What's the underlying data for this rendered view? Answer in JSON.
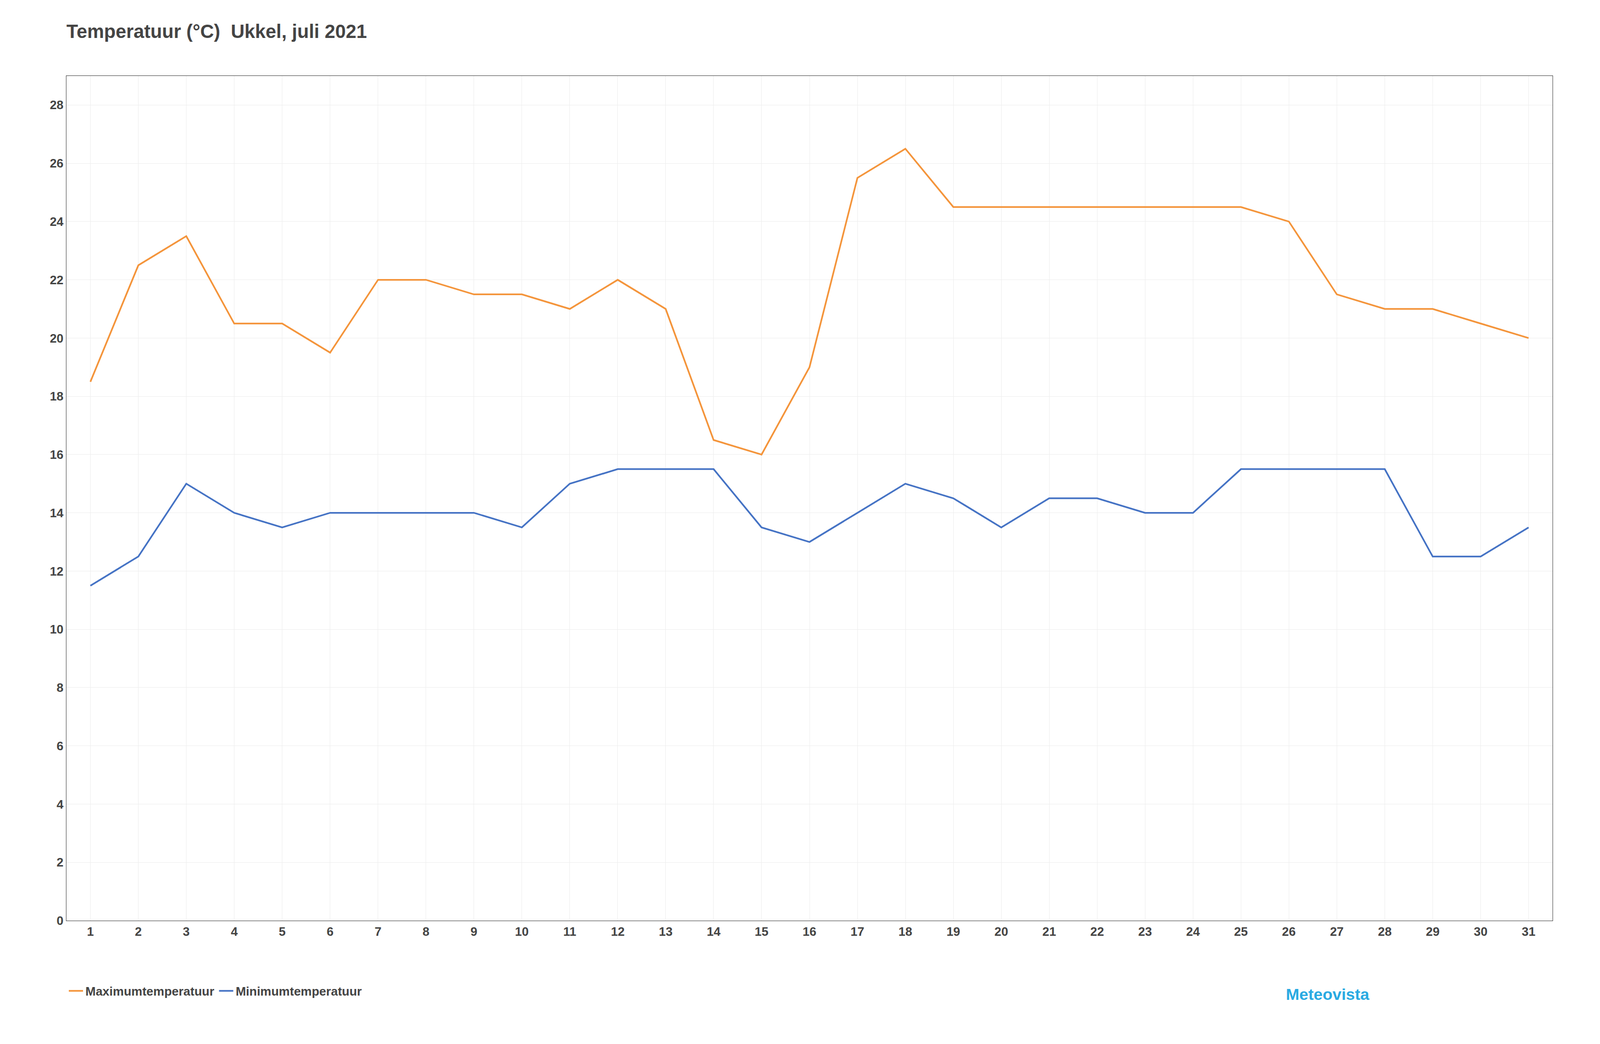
{
  "chart_data": {
    "type": "line",
    "title": "Temperatuur (°C)  Ukkel, juli 2021",
    "x": [
      1,
      2,
      3,
      4,
      5,
      6,
      7,
      8,
      9,
      10,
      11,
      12,
      13,
      14,
      15,
      16,
      17,
      18,
      19,
      20,
      21,
      22,
      23,
      24,
      25,
      26,
      27,
      28,
      29,
      30,
      31
    ],
    "series": [
      {
        "name": "Maximumtemperatuur",
        "color": "#f4943a",
        "values": [
          18.5,
          22.5,
          23.5,
          20.5,
          20.5,
          19.5,
          22.0,
          22.0,
          21.5,
          21.5,
          21.0,
          22.0,
          21.0,
          16.5,
          16.0,
          19.0,
          25.5,
          26.5,
          24.5,
          24.5,
          24.5,
          24.5,
          24.5,
          24.5,
          24.5,
          24.0,
          21.5,
          21.0,
          21.0,
          20.5,
          20.0
        ]
      },
      {
        "name": "Minimumtemperatuur",
        "color": "#4472c4",
        "values": [
          11.5,
          12.5,
          15.0,
          14.0,
          13.5,
          14.0,
          14.0,
          14.0,
          14.0,
          13.5,
          15.0,
          15.5,
          15.5,
          15.5,
          13.5,
          13.0,
          14.0,
          15.0,
          14.5,
          13.5,
          14.5,
          14.5,
          14.0,
          14.0,
          15.5,
          15.5,
          15.5,
          15.5,
          12.5,
          12.5,
          13.5
        ]
      }
    ],
    "xlim": [
      0.5,
      31.5
    ],
    "xticks": [
      1,
      2,
      3,
      4,
      5,
      6,
      7,
      8,
      9,
      10,
      11,
      12,
      13,
      14,
      15,
      16,
      17,
      18,
      19,
      20,
      21,
      22,
      23,
      24,
      25,
      26,
      27,
      28,
      29,
      30,
      31
    ],
    "ylim": [
      0,
      29
    ],
    "yticks": [
      0,
      2,
      4,
      6,
      8,
      10,
      12,
      14,
      16,
      18,
      20,
      22,
      24,
      26,
      28
    ],
    "grid": true,
    "legend": "bottom",
    "annotations": [
      {
        "text": "Meteovista",
        "color": "#29aae2"
      }
    ]
  }
}
